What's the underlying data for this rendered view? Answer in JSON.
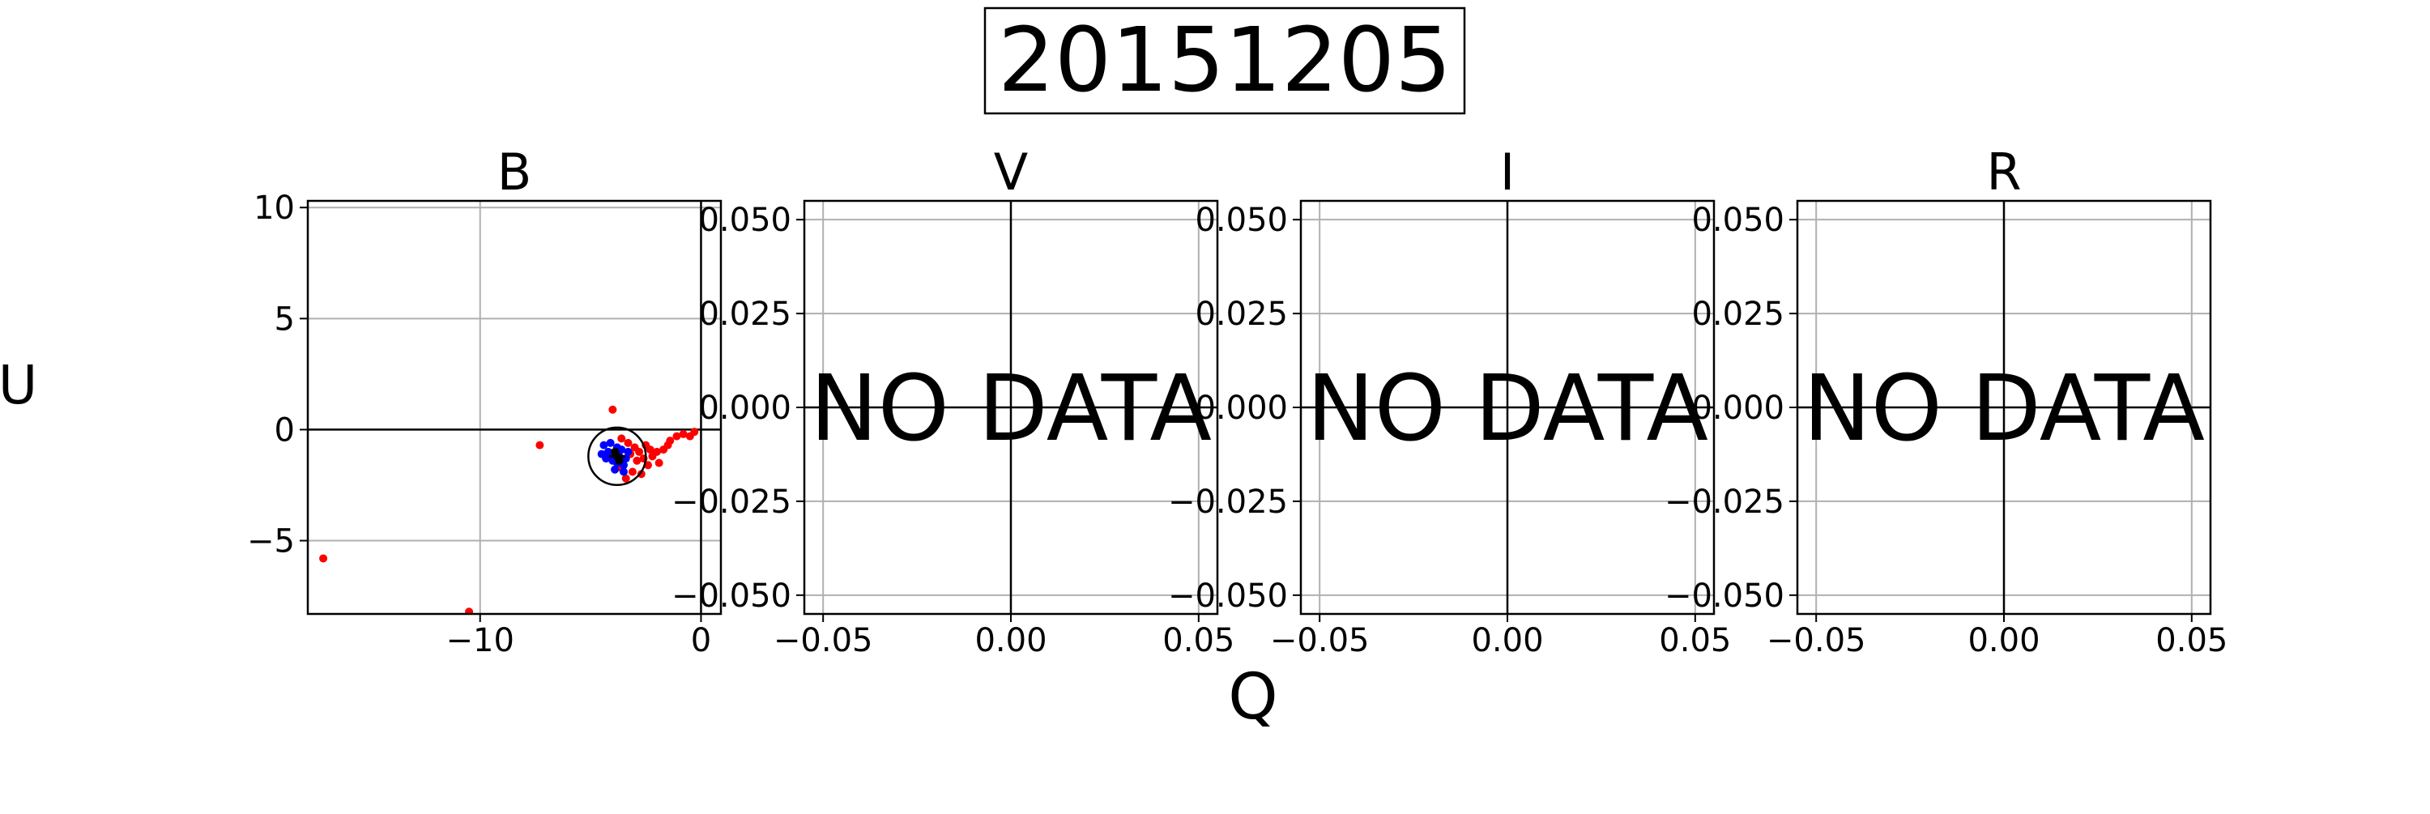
{
  "figure": {
    "title": "20151205",
    "xlabel": "Q",
    "ylabel": "U"
  },
  "chart_data": [
    {
      "type": "scatter",
      "title": "B",
      "xlim": [
        -17.8,
        0.9
      ],
      "ylim": [
        -8.3,
        10.3
      ],
      "xticks": [
        -10,
        0
      ],
      "xtick_labels": [
        "−10",
        "0"
      ],
      "yticks": [
        10,
        5,
        0,
        -5
      ],
      "ytick_labels": [
        "10",
        "5",
        "0",
        "−5"
      ],
      "grid": true,
      "zero_lines": true,
      "circle": {
        "center": [
          -3.8,
          -1.2
        ],
        "radius": 1.3
      },
      "center_point": [
        -3.8,
        -1.2
      ],
      "series": [
        {
          "color": "#ff0000",
          "points": [
            [
              -17.1,
              -5.8
            ],
            [
              -10.5,
              -8.2
            ],
            [
              -7.3,
              -0.7
            ],
            [
              -4.0,
              0.9
            ],
            [
              -3.6,
              -0.4
            ],
            [
              -3.3,
              -0.6
            ],
            [
              -3.0,
              -0.8
            ],
            [
              -2.8,
              -1.0
            ],
            [
              -2.6,
              -1.3
            ],
            [
              -2.4,
              -1.6
            ],
            [
              -2.2,
              -1.2
            ],
            [
              -2.0,
              -1.0
            ],
            [
              -1.7,
              -0.9
            ],
            [
              -1.4,
              -0.5
            ],
            [
              -1.1,
              -0.3
            ],
            [
              -0.8,
              -0.2
            ],
            [
              -0.5,
              -0.3
            ],
            [
              -0.3,
              -0.1
            ],
            [
              -3.4,
              -2.2
            ],
            [
              -3.1,
              -1.9
            ],
            [
              -2.9,
              -1.4
            ],
            [
              -3.7,
              -1.7
            ],
            [
              -2.5,
              -0.7
            ],
            [
              -1.9,
              -1.5
            ],
            [
              -3.2,
              -1.1
            ],
            [
              -2.7,
              -2.0
            ],
            [
              -1.5,
              -0.7
            ],
            [
              -2.3,
              -0.9
            ]
          ]
        },
        {
          "color": "#0000ff",
          "points": [
            [
              -4.4,
              -0.7
            ],
            [
              -4.2,
              -1.0
            ],
            [
              -4.0,
              -1.4
            ],
            [
              -3.8,
              -0.8
            ],
            [
              -3.7,
              -1.2
            ],
            [
              -3.5,
              -1.6
            ],
            [
              -3.9,
              -1.8
            ],
            [
              -4.3,
              -1.3
            ],
            [
              -3.6,
              -0.9
            ],
            [
              -3.4,
              -1.3
            ],
            [
              -4.1,
              -0.6
            ],
            [
              -3.8,
              -1.5
            ],
            [
              -3.5,
              -1.9
            ],
            [
              -4.5,
              -1.1
            ],
            [
              -3.3,
              -1.0
            ],
            [
              -4.0,
              -1.1
            ]
          ]
        },
        {
          "color": "#000000",
          "points": [
            [
              -3.8,
              -1.2
            ],
            [
              -3.7,
              -1.4
            ],
            [
              -3.9,
              -1.0
            ]
          ]
        }
      ]
    },
    {
      "type": "scatter",
      "title": "V",
      "no_data_text": "NO DATA",
      "xlim": [
        -0.055,
        0.055
      ],
      "ylim": [
        -0.055,
        0.055
      ],
      "xticks": [
        -0.05,
        0,
        0.05
      ],
      "xtick_labels": [
        "−0.05",
        "0.00",
        "0.05"
      ],
      "yticks": [
        0.05,
        0.025,
        0,
        -0.025,
        -0.05
      ],
      "ytick_labels": [
        "0.050",
        "0.025",
        "0.000",
        "−0.025",
        "−0.050"
      ],
      "grid": true,
      "zero_lines": true,
      "series": []
    },
    {
      "type": "scatter",
      "title": "I",
      "no_data_text": "NO DATA",
      "xlim": [
        -0.055,
        0.055
      ],
      "ylim": [
        -0.055,
        0.055
      ],
      "xticks": [
        -0.05,
        0,
        0.05
      ],
      "xtick_labels": [
        "−0.05",
        "0.00",
        "0.05"
      ],
      "yticks": [
        0.05,
        0.025,
        0,
        -0.025,
        -0.05
      ],
      "ytick_labels": [
        "0.050",
        "0.025",
        "0.000",
        "−0.025",
        "−0.050"
      ],
      "grid": true,
      "zero_lines": true,
      "series": []
    },
    {
      "type": "scatter",
      "title": "R",
      "no_data_text": "NO DATA",
      "xlim": [
        -0.055,
        0.055
      ],
      "ylim": [
        -0.055,
        0.055
      ],
      "xticks": [
        -0.05,
        0,
        0.05
      ],
      "xtick_labels": [
        "−0.05",
        "0.00",
        "0.05"
      ],
      "yticks": [
        0.05,
        0.025,
        0,
        -0.025,
        -0.05
      ],
      "ytick_labels": [
        "0.050",
        "0.025",
        "0.000",
        "−0.025",
        "−0.050"
      ],
      "grid": true,
      "zero_lines": true,
      "series": []
    }
  ]
}
